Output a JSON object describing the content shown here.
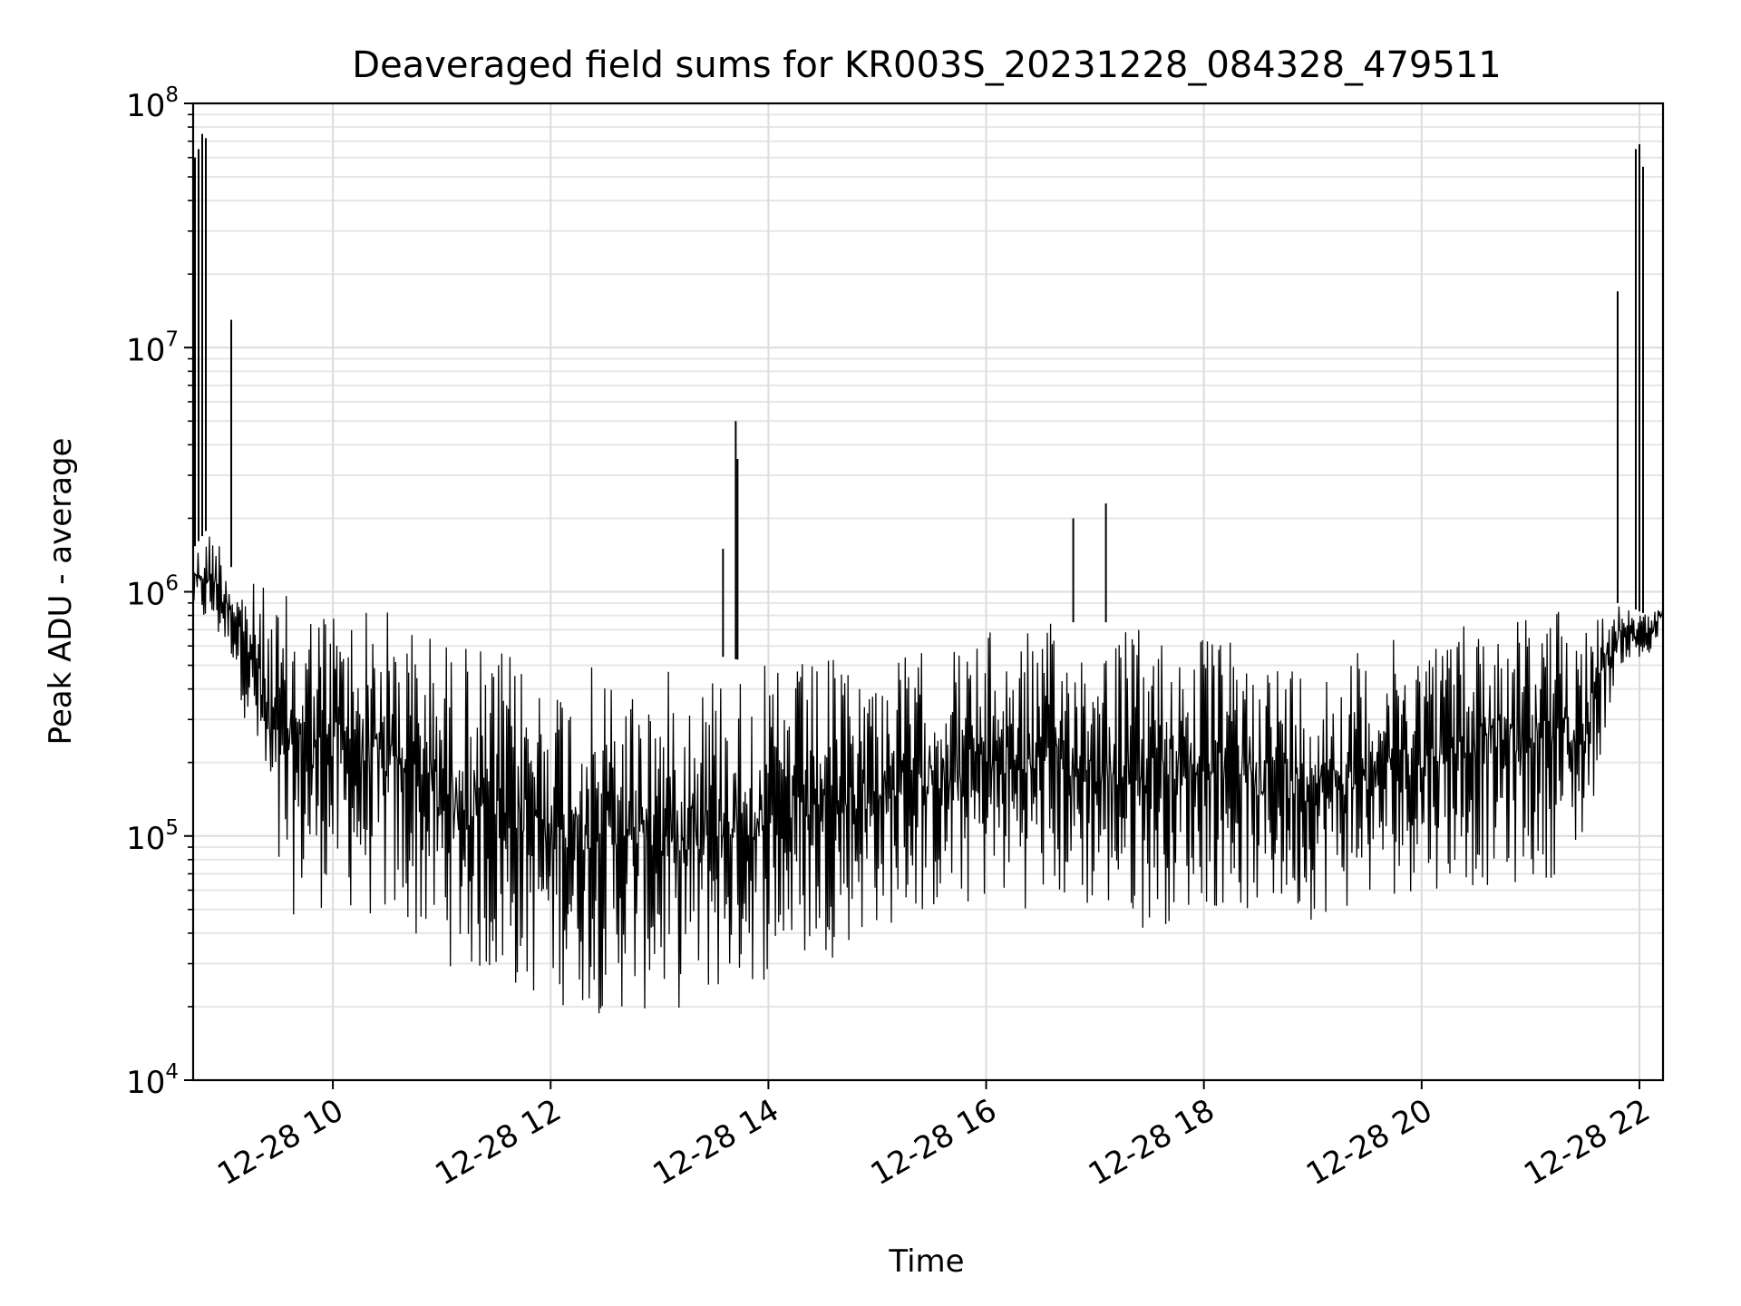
{
  "chart_data": {
    "type": "line",
    "title": "Deaveraged field sums for KR003S_20231228_084328_479511",
    "xlabel": "Time",
    "ylabel": "Peak ADU - average",
    "y_scale": "log",
    "ylim": [
      10000,
      100000000
    ],
    "xlim": [
      "2023-12-28 08:43",
      "2023-12-28 22:13"
    ],
    "grid": true,
    "line_color": "#000000",
    "x_ticks": [
      {
        "value": "2023-12-28 10:00",
        "label": "12-28 10"
      },
      {
        "value": "2023-12-28 12:00",
        "label": "12-28 12"
      },
      {
        "value": "2023-12-28 14:00",
        "label": "12-28 14"
      },
      {
        "value": "2023-12-28 16:00",
        "label": "12-28 16"
      },
      {
        "value": "2023-12-28 18:00",
        "label": "12-28 18"
      },
      {
        "value": "2023-12-28 20:00",
        "label": "12-28 20"
      },
      {
        "value": "2023-12-28 22:00",
        "label": "12-28 22"
      }
    ],
    "y_ticks": [
      {
        "value": 10000,
        "base": "10",
        "exp": "4"
      },
      {
        "value": 100000,
        "base": "10",
        "exp": "5"
      },
      {
        "value": 1000000,
        "base": "10",
        "exp": "6"
      },
      {
        "value": 10000000,
        "base": "10",
        "exp": "7"
      },
      {
        "value": 100000000,
        "base": "10",
        "exp": "8"
      }
    ],
    "envelope": [
      {
        "x": "2023-12-28 08:43",
        "low": 800000,
        "high": 1500000
      },
      {
        "x": "2023-12-28 08:55",
        "low": 600000,
        "high": 2000000
      },
      {
        "x": "2023-12-28 09:05",
        "low": 500000,
        "high": 1200000
      },
      {
        "x": "2023-12-28 09:20",
        "low": 150000,
        "high": 1100000
      },
      {
        "x": "2023-12-28 09:30",
        "low": 45000,
        "high": 1000000
      },
      {
        "x": "2023-12-28 10:00",
        "low": 50000,
        "high": 1000000
      },
      {
        "x": "2023-12-28 10:30",
        "low": 40000,
        "high": 900000
      },
      {
        "x": "2023-12-28 11:00",
        "low": 30000,
        "high": 700000
      },
      {
        "x": "2023-12-28 11:30",
        "low": 22000,
        "high": 600000
      },
      {
        "x": "2023-12-28 12:00",
        "low": 20000,
        "high": 520000
      },
      {
        "x": "2023-12-28 12:30",
        "low": 18000,
        "high": 500000
      },
      {
        "x": "2023-12-28 13:00",
        "low": 18000,
        "high": 480000
      },
      {
        "x": "2023-12-28 13:30",
        "low": 20000,
        "high": 550000
      },
      {
        "x": "2023-12-28 14:00",
        "low": 25000,
        "high": 500000
      },
      {
        "x": "2023-12-28 14:30",
        "low": 30000,
        "high": 550000
      },
      {
        "x": "2023-12-28 15:00",
        "low": 40000,
        "high": 550000
      },
      {
        "x": "2023-12-28 15:30",
        "low": 45000,
        "high": 600000
      },
      {
        "x": "2023-12-28 16:00",
        "low": 50000,
        "high": 700000
      },
      {
        "x": "2023-12-28 16:30",
        "low": 50000,
        "high": 750000
      },
      {
        "x": "2023-12-28 17:00",
        "low": 45000,
        "high": 750000
      },
      {
        "x": "2023-12-28 17:30",
        "low": 40000,
        "high": 750000
      },
      {
        "x": "2023-12-28 18:00",
        "low": 50000,
        "high": 700000
      },
      {
        "x": "2023-12-28 18:30",
        "low": 45000,
        "high": 600000
      },
      {
        "x": "2023-12-28 19:00",
        "low": 45000,
        "high": 550000
      },
      {
        "x": "2023-12-28 19:30",
        "low": 50000,
        "high": 600000
      },
      {
        "x": "2023-12-28 20:00",
        "low": 60000,
        "high": 700000
      },
      {
        "x": "2023-12-28 20:30",
        "low": 60000,
        "high": 850000
      },
      {
        "x": "2023-12-28 21:00",
        "low": 60000,
        "high": 900000
      },
      {
        "x": "2023-12-28 21:30",
        "low": 80000,
        "high": 900000
      },
      {
        "x": "2023-12-28 21:42",
        "low": 300000,
        "high": 900000
      },
      {
        "x": "2023-12-28 21:50",
        "low": 500000,
        "high": 900000
      },
      {
        "x": "2023-12-28 22:05",
        "low": 500000,
        "high": 800000
      },
      {
        "x": "2023-12-28 22:13",
        "low": 700000,
        "high": 1000000
      }
    ],
    "spikes": [
      {
        "x": "2023-12-28 08:44",
        "y": 60000000
      },
      {
        "x": "2023-12-28 08:46",
        "y": 65000000
      },
      {
        "x": "2023-12-28 08:48",
        "y": 75000000
      },
      {
        "x": "2023-12-28 08:50",
        "y": 72000000
      },
      {
        "x": "2023-12-28 09:04",
        "y": 13000000
      },
      {
        "x": "2023-12-28 13:35",
        "y": 1500000
      },
      {
        "x": "2023-12-28 13:42",
        "y": 5000000
      },
      {
        "x": "2023-12-28 13:43",
        "y": 3500000
      },
      {
        "x": "2023-12-28 16:48",
        "y": 2000000
      },
      {
        "x": "2023-12-28 17:06",
        "y": 2300000
      },
      {
        "x": "2023-12-28 21:48",
        "y": 17000000
      },
      {
        "x": "2023-12-28 21:58",
        "y": 65000000
      },
      {
        "x": "2023-12-28 22:00",
        "y": 68000000
      },
      {
        "x": "2023-12-28 22:02",
        "y": 55000000
      }
    ]
  }
}
